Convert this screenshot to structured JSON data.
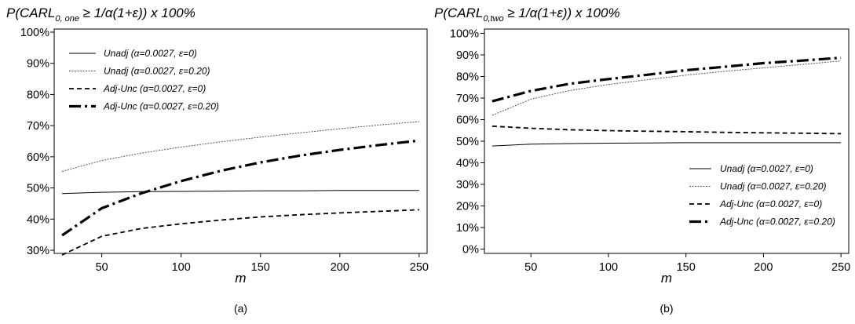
{
  "chart_data": [
    {
      "type": "line",
      "panel_label": "(a)",
      "title_parts": {
        "pre": "P(CARL",
        "sub": "0, one",
        "post": " ≥ 1/α(1+ε)) x 100%"
      },
      "xlabel": "m",
      "ylabel": "",
      "xlim": [
        20,
        255
      ],
      "ylim": [
        0.29,
        1.01
      ],
      "xticks": [
        50,
        100,
        150,
        200,
        250
      ],
      "xtick_labels": [
        "50",
        "100",
        "150",
        "200",
        "250"
      ],
      "yticks": [
        0.3,
        0.4,
        0.5,
        0.6,
        0.7,
        0.8,
        0.9,
        1.0
      ],
      "ytick_labels": [
        "30%",
        "40%",
        "50%",
        "60%",
        "70%",
        "80%",
        "90%",
        "100%"
      ],
      "legend_position": "top-left",
      "grid": false,
      "x": [
        25,
        50,
        75,
        100,
        125,
        150,
        175,
        200,
        225,
        250
      ],
      "series": [
        {
          "legend_label": "Unadj (α=0.0027, ε=0)",
          "style": "solid-thin",
          "values": [
            0.482,
            0.486,
            0.488,
            0.489,
            0.49,
            0.491,
            0.491,
            0.492,
            0.492,
            0.492
          ]
        },
        {
          "legend_label": "Unadj (α=0.0027, ε=0.20)",
          "style": "dotted-thin",
          "values": [
            0.553,
            0.588,
            0.612,
            0.631,
            0.648,
            0.663,
            0.677,
            0.69,
            0.702,
            0.713
          ]
        },
        {
          "legend_label": "Adj-Unc (α=0.0027, ε=0)",
          "style": "dashed",
          "values": [
            0.285,
            0.345,
            0.37,
            0.385,
            0.397,
            0.407,
            0.414,
            0.42,
            0.425,
            0.43
          ]
        },
        {
          "legend_label": "Adj-Unc (α=0.0027, ε=0.20)",
          "style": "longdash-thick",
          "values": [
            0.348,
            0.435,
            0.483,
            0.522,
            0.555,
            0.582,
            0.604,
            0.622,
            0.638,
            0.652
          ]
        }
      ]
    },
    {
      "type": "line",
      "panel_label": "(b)",
      "title_parts": {
        "pre": "P(CARL",
        "sub": "0,two",
        "post": " ≥ 1/α(1+ε)) x 100%"
      },
      "xlabel": "m",
      "ylabel": "",
      "xlim": [
        20,
        255
      ],
      "ylim": [
        -0.02,
        1.02
      ],
      "xticks": [
        50,
        100,
        150,
        200,
        250
      ],
      "xtick_labels": [
        "50",
        "100",
        "150",
        "200",
        "250"
      ],
      "yticks": [
        0.0,
        0.1,
        0.2,
        0.3,
        0.4,
        0.5,
        0.6,
        0.7,
        0.8,
        0.9,
        1.0
      ],
      "ytick_labels": [
        "0%",
        "10%",
        "20%",
        "30%",
        "40%",
        "50%",
        "60%",
        "70%",
        "80%",
        "90%",
        "100%"
      ],
      "legend_position": "bottom-right",
      "grid": false,
      "x": [
        25,
        50,
        75,
        100,
        125,
        150,
        175,
        200,
        225,
        250
      ],
      "series": [
        {
          "legend_label": "Unadj (α=0.0027, ε=0)",
          "style": "solid-thin",
          "values": [
            0.478,
            0.486,
            0.489,
            0.491,
            0.492,
            0.493,
            0.493,
            0.493,
            0.493,
            0.493
          ]
        },
        {
          "legend_label": "Unadj (α=0.0027, ε=0.20)",
          "style": "dotted-thin",
          "values": [
            0.62,
            0.695,
            0.735,
            0.763,
            0.785,
            0.806,
            0.824,
            0.84,
            0.856,
            0.872
          ]
        },
        {
          "legend_label": "Adj-Unc (α=0.0027, ε=0)",
          "style": "dashed",
          "values": [
            0.57,
            0.56,
            0.553,
            0.549,
            0.546,
            0.544,
            0.541,
            0.539,
            0.537,
            0.535
          ]
        },
        {
          "legend_label": "Adj-Unc (α=0.0027, ε=0.20)",
          "style": "longdash-thick",
          "values": [
            0.685,
            0.733,
            0.766,
            0.788,
            0.808,
            0.829,
            0.845,
            0.862,
            0.874,
            0.887
          ]
        }
      ]
    }
  ]
}
